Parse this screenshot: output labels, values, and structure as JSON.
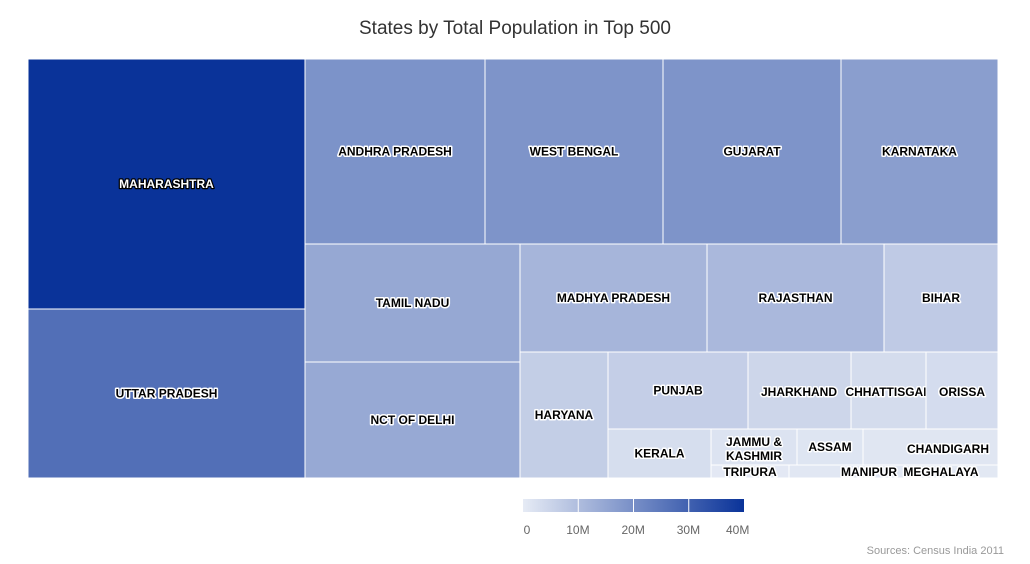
{
  "chart_data": {
    "type": "treemap",
    "title": "States by Total Population in Top 500",
    "source": "Sources: Census India 2011",
    "color_scale": {
      "min": 0,
      "max": 40000000,
      "min_color": "#e6ebf5",
      "max_color": "#0a3399",
      "ticks": [
        "0",
        "10M",
        "20M",
        "30M",
        "40M"
      ]
    },
    "items": [
      {
        "name": "MAHARASHTRA",
        "value": 40000000
      },
      {
        "name": "UTTAR PRADESH",
        "value": 27000000
      },
      {
        "name": "ANDHRA PRADESH",
        "value": 19200000
      },
      {
        "name": "WEST BENGAL",
        "value": 19000000
      },
      {
        "name": "GUJARAT",
        "value": 19000000
      },
      {
        "name": "KARNATAKA",
        "value": 16800000
      },
      {
        "name": "TAMIL NADU",
        "value": 14600000
      },
      {
        "name": "NCT OF DELHI",
        "value": 14400000
      },
      {
        "name": "MADHYA PRADESH",
        "value": 11700000
      },
      {
        "name": "RAJASTHAN",
        "value": 11000000
      },
      {
        "name": "BIHAR",
        "value": 7100000
      },
      {
        "name": "HARYANA",
        "value": 6400000
      },
      {
        "name": "PUNJAB",
        "value": 6200000
      },
      {
        "name": "JHARKHAND",
        "value": 4600000
      },
      {
        "name": "CHHATTISGARH",
        "value": 3300000
      },
      {
        "name": "ORISSA",
        "value": 3200000
      },
      {
        "name": "KERALA",
        "value": 2900000
      },
      {
        "name": "JAMMU & KASHMIR",
        "value": 1800000
      },
      {
        "name": "ASSAM",
        "value": 1400000
      },
      {
        "name": "CHANDIGARH",
        "value": 1100000
      },
      {
        "name": "TRIPURA",
        "value": 600000
      },
      {
        "name": "MANIPUR",
        "value": 900000
      },
      {
        "name": "MEGHALAYA",
        "value": 700000
      }
    ]
  }
}
